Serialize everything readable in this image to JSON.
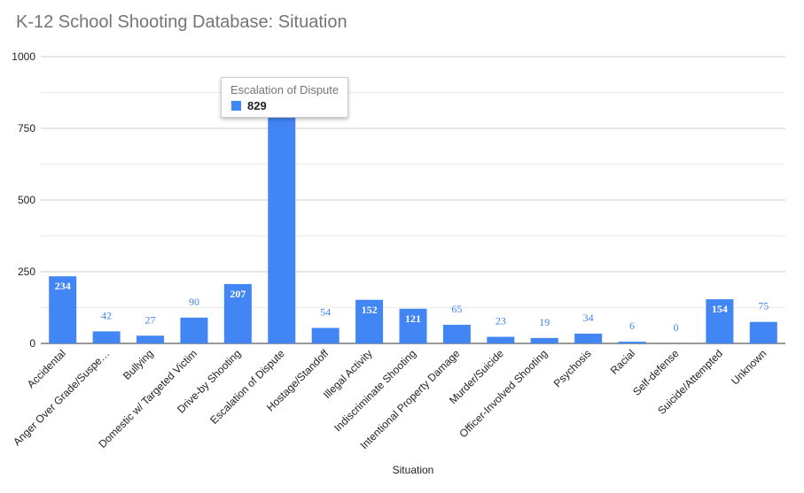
{
  "chart_data": {
    "type": "bar",
    "title": "K-12 School Shooting Database: Situation",
    "xlabel": "Situation",
    "ylabel": "",
    "ylim": [
      0,
      1000
    ],
    "yticks": [
      "0",
      "250",
      "500",
      "750",
      "1000"
    ],
    "grid": true,
    "bar_color": "#4285f4",
    "categories": [
      "Accidental",
      "Anger Over Grade/Suspe…",
      "Bullying",
      "Domestic w/ Targeted Victim",
      "Drive-by Shooting",
      "Escalation of Dispute",
      "Hostage/Standoff",
      "Illegal Activity",
      "Indiscriminate Shooting",
      "Intentional Property Damage",
      "Murder/Suicide",
      "Officer-Involved Shooting",
      "Psychosis",
      "Racial",
      "Self-defense",
      "Suicide/Attempted",
      "Unknown"
    ],
    "values": [
      234,
      42,
      27,
      90,
      207,
      829,
      54,
      152,
      121,
      65,
      23,
      19,
      34,
      6,
      0,
      154,
      75
    ],
    "labels_visible": [
      "234",
      "42",
      "27",
      "90",
      "207",
      "",
      "54",
      "152",
      "121",
      "65",
      "23",
      "19",
      "34",
      "6",
      "0",
      "154",
      "75"
    ]
  },
  "tooltip": {
    "category": "Escalation of Dispute",
    "value": "829"
  }
}
